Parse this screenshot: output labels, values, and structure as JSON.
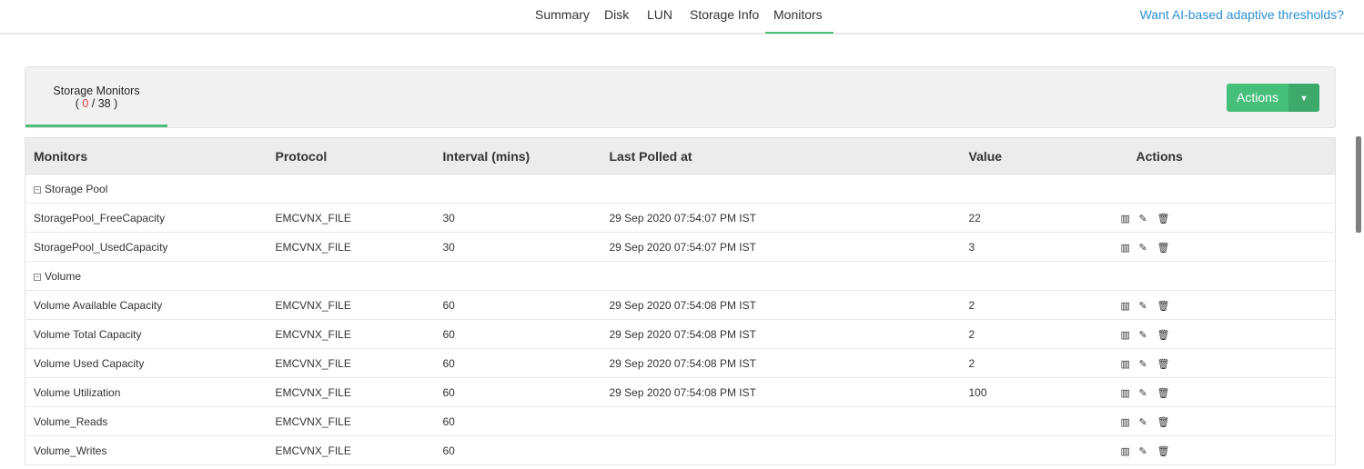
{
  "nav": {
    "tabs": [
      "Summary",
      "Disk",
      "LUN",
      "Storage Info",
      "Monitors"
    ],
    "active": "Monitors",
    "ai_link": "Want AI-based adaptive thresholds?"
  },
  "panel": {
    "tab_title": "Storage Monitors",
    "down_count": "0",
    "total_count": "38",
    "actions_label": "Actions"
  },
  "table": {
    "headers": [
      "Monitors",
      "Protocol",
      "Interval (mins)",
      "Last Polled at",
      "Value",
      "Actions"
    ],
    "groups": [
      {
        "name": "Storage Pool",
        "rows": [
          [
            "StoragePool_FreeCapacity",
            "EMCVNX_FILE",
            "30",
            "29 Sep 2020 07:54:07 PM IST",
            "22"
          ],
          [
            "StoragePool_UsedCapacity",
            "EMCVNX_FILE",
            "30",
            "29 Sep 2020 07:54:07 PM IST",
            "3"
          ]
        ]
      },
      {
        "name": "Volume",
        "rows": [
          [
            "Volume Available Capacity",
            "EMCVNX_FILE",
            "60",
            "29 Sep 2020 07:54:08 PM IST",
            "2"
          ],
          [
            "Volume Total Capacity",
            "EMCVNX_FILE",
            "60",
            "29 Sep 2020 07:54:08 PM IST",
            "2"
          ],
          [
            "Volume Used Capacity",
            "EMCVNX_FILE",
            "60",
            "29 Sep 2020 07:54:08 PM IST",
            "2"
          ],
          [
            "Volume Utilization",
            "EMCVNX_FILE",
            "60",
            "29 Sep 2020 07:54:08 PM IST",
            "100"
          ],
          [
            "Volume_Reads",
            "EMCVNX_FILE",
            "60",
            "",
            ""
          ],
          [
            "Volume_Writes",
            "EMCVNX_FILE",
            "60",
            "",
            ""
          ]
        ]
      }
    ]
  },
  "colors": {
    "accent": "#45bf7a",
    "link": "#2d8fd5",
    "alert": "#e83c3c"
  }
}
